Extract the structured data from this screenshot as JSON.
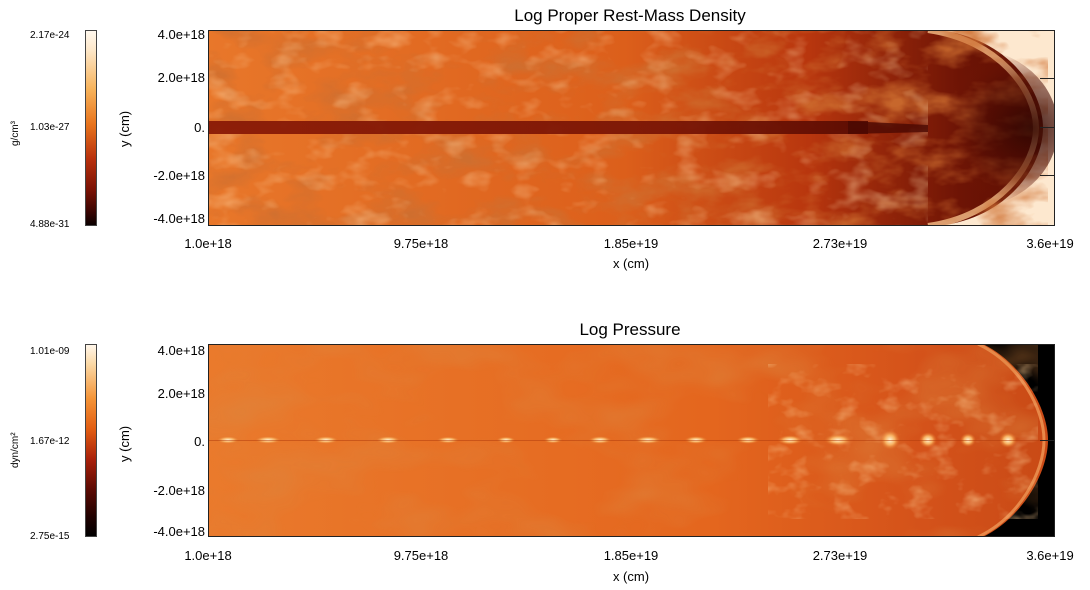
{
  "density_panel": {
    "title": "Log Proper Rest-Mass Density",
    "colorbar": {
      "max_label": "2.17e-24",
      "mid_label": "1.03e-27",
      "min_label": "4.88e-31",
      "unit": "g/cm³"
    },
    "y_ticks": [
      "4.0e+18",
      "2.0e+18",
      "0.",
      "-2.0e+18",
      "-4.0e+18"
    ],
    "x_ticks": [
      "1.0e+18",
      "9.75e+18",
      "1.85e+19",
      "2.73e+19",
      "3.6e+19"
    ],
    "xlabel": "x (cm)",
    "ylabel": "y (cm)"
  },
  "pressure_panel": {
    "title": "Log Pressure",
    "colorbar": {
      "max_label": "1.01e-09",
      "mid_label": "1.67e-12",
      "min_label": "2.75e-15",
      "unit": "dyn/cm²"
    },
    "y_ticks": [
      "4.0e+18",
      "2.0e+18",
      "0.",
      "-2.0e+18",
      "-4.0e+18"
    ],
    "x_ticks": [
      "1.0e+18",
      "9.75e+18",
      "1.85e+19",
      "2.73e+19",
      "3.6e+19"
    ],
    "xlabel": "x (cm)",
    "ylabel": "y (cm)"
  },
  "colors": {
    "density_background": "#e0661f",
    "density_jet": "#8a1a06",
    "density_ambient": "#fde8cf",
    "pressure_background": "#e8681f",
    "pressure_ambient": "#000000",
    "knot_highlight": "#fff0c8"
  }
}
